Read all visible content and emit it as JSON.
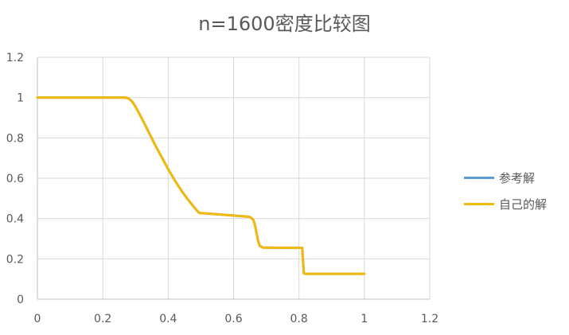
{
  "chart_data": {
    "type": "line",
    "title": "n=1600密度比较图",
    "xlim": [
      0,
      1.2
    ],
    "ylim": [
      0,
      1.2
    ],
    "x_ticks": [
      "0",
      "0.2",
      "0.4",
      "0.6",
      "0.8",
      "1",
      "1.2"
    ],
    "y_ticks": [
      "0",
      "0.2",
      "0.4",
      "0.6",
      "0.8",
      "1",
      "1.2"
    ],
    "x_tick_values": [
      0,
      0.2,
      0.4,
      0.6,
      0.8,
      1.0,
      1.2
    ],
    "y_tick_values": [
      0,
      0.2,
      0.4,
      0.6,
      0.8,
      1.0,
      1.2
    ],
    "grid": true,
    "legend_position": "right",
    "series": [
      {
        "name": "参考解",
        "color": "#5B9BD5",
        "x": [
          0,
          0.1,
          0.2,
          0.26,
          0.27,
          0.28,
          0.29,
          0.3,
          0.32,
          0.34,
          0.36,
          0.38,
          0.4,
          0.42,
          0.44,
          0.46,
          0.48,
          0.49,
          0.495,
          0.52,
          0.56,
          0.6,
          0.64,
          0.65,
          0.66,
          0.665,
          0.67,
          0.675,
          0.68,
          0.69,
          0.72,
          0.76,
          0.8,
          0.81,
          0.812,
          0.815,
          0.82,
          0.85,
          0.9,
          0.95,
          1.0
        ],
        "y": [
          1.0,
          1.0,
          1.0,
          1.0,
          1.0,
          0.995,
          0.98,
          0.955,
          0.895,
          0.83,
          0.765,
          0.705,
          0.645,
          0.59,
          0.54,
          0.495,
          0.455,
          0.436,
          0.428,
          0.425,
          0.42,
          0.415,
          0.41,
          0.408,
          0.395,
          0.37,
          0.33,
          0.29,
          0.265,
          0.256,
          0.255,
          0.255,
          0.255,
          0.254,
          0.2,
          0.128,
          0.126,
          0.126,
          0.126,
          0.126,
          0.126
        ]
      },
      {
        "name": "自己的解",
        "color": "#F2B90A",
        "x": [
          0,
          0.1,
          0.2,
          0.26,
          0.27,
          0.28,
          0.29,
          0.3,
          0.32,
          0.34,
          0.36,
          0.38,
          0.4,
          0.42,
          0.44,
          0.46,
          0.48,
          0.49,
          0.495,
          0.52,
          0.56,
          0.6,
          0.64,
          0.65,
          0.66,
          0.665,
          0.67,
          0.675,
          0.68,
          0.69,
          0.72,
          0.76,
          0.8,
          0.81,
          0.812,
          0.815,
          0.82,
          0.85,
          0.9,
          0.95,
          1.0
        ],
        "y": [
          1.0,
          1.0,
          1.0,
          1.0,
          1.0,
          0.995,
          0.98,
          0.955,
          0.895,
          0.83,
          0.765,
          0.705,
          0.645,
          0.59,
          0.54,
          0.495,
          0.455,
          0.436,
          0.428,
          0.425,
          0.42,
          0.415,
          0.41,
          0.408,
          0.395,
          0.37,
          0.33,
          0.29,
          0.265,
          0.256,
          0.255,
          0.255,
          0.255,
          0.254,
          0.2,
          0.128,
          0.126,
          0.126,
          0.126,
          0.126,
          0.126
        ]
      }
    ]
  }
}
